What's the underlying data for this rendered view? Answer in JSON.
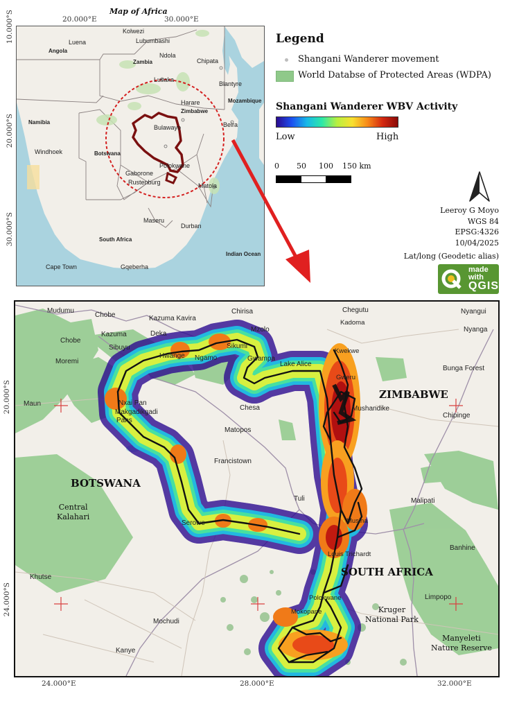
{
  "inset": {
    "title": "Map of Africa",
    "coords_top": [
      "20.000°E",
      "30.000°E"
    ],
    "coords_left": [
      "10.000°S",
      "20.000°S",
      "30.000°S"
    ],
    "labels": {
      "kolwezi": "Kolwezi",
      "lubumbashi": "Lubumbashi",
      "luena": "Luena",
      "angola": "Angola",
      "ndola": "Ndola",
      "zambia": "Zambia",
      "chipata": "Chipata",
      "lusaka": "Lusaka",
      "blantyre": "Blantyre",
      "mozambique": "Mozambique",
      "harare": "Harare",
      "zimbabwe": "Zimbabwe",
      "namibia": "Namibia",
      "bulawayo": "Bulawayo",
      "beira": "Beira",
      "windhoek": "Windhoek",
      "botswana": "Botswana",
      "polokwane": "Polokwane",
      "gaborone": "Gaborone",
      "rustenburg": "Rustenburg",
      "matola": "Matola",
      "maseru": "Maseru",
      "durban": "Durban",
      "south_africa": "South Africa",
      "indian_ocean": "Indian Ocean",
      "cape_town": "Cape Town",
      "gqeberha": "Gqeberha"
    }
  },
  "legend": {
    "title": "Legend",
    "items": [
      {
        "label": "Shangani Wanderer movement",
        "color": "#bdbdbd"
      },
      {
        "label": "World Databse of Protected Areas (WDPA)",
        "color": "#8fc98a"
      }
    ],
    "activity_title": "Shangani Wanderer WBV Activity",
    "low": "Low",
    "high": "High",
    "scale_labels": [
      "0",
      "50",
      "100",
      "150 km"
    ]
  },
  "meta": {
    "author": "Leeroy G Moyo",
    "datum": "WGS 84",
    "epsg": "EPSG:4326",
    "date": "10/04/2025",
    "projection": "Lat/long (Geodetic alias)",
    "badge_line1": "made",
    "badge_line2": "with",
    "badge_line3": "QGIS"
  },
  "main": {
    "coords_bottom": [
      "24.000°E",
      "28.000°E",
      "32.000°E"
    ],
    "coords_left": [
      "20.000°S",
      "24.000°S"
    ],
    "countries": {
      "zimbabwe": "ZIMBABWE",
      "botswana": "BOTSWANA",
      "south_africa": "SOUTH AFRICA"
    },
    "parks": {
      "central_kalahari": "Central\nKalahari",
      "kruger": "Kruger\nNational Park",
      "manyeleti": "Manyeleti\nNature Reserve"
    },
    "places": {
      "mudumu": "Mudumu",
      "chobe1": "Chobe",
      "chirisa": "Chirisa",
      "chegutu": "Chegutu",
      "nyangui": "Nyangui",
      "kazuma_kavira": "Kazuma Kavira",
      "kadoma": "Kadoma",
      "nyanga": "Nyanga",
      "chobe2": "Chobe",
      "kazuma": "Kazuma",
      "deka": "Deka",
      "mzolo": "Mzolo",
      "sibuyu": "Sibuyu",
      "sikumi": "Sikumi",
      "kwekwe": "Kwekwe",
      "hwange": "Hwange",
      "ngamo": "Ngamo",
      "gwampa": "Gwampa",
      "moremi": "Moremi",
      "lake_alice": "Lake Alice",
      "bunga_forest": "Bunga Forest",
      "gweru": "Gweru",
      "maun": "Maun",
      "nxai_pan": "Nxai Pan",
      "makgadikgadi": "Makgadikgadi",
      "pans": "Pans",
      "chesa": "Chesa",
      "mushandike": "Mushandike",
      "chipinge": "Chipinge",
      "matopos": "Matopos",
      "francistown": "Francistown",
      "tuli": "Tuli",
      "malipati": "Malipati",
      "serowe": "Serowe",
      "musina": "Musina",
      "banhine": "Banhine",
      "louis_trichardt": "Louis Trichardt",
      "khutse": "Khutse",
      "polokwane": "Polokwane",
      "limpopo": "Limpopo",
      "mokopane": "Mokopane",
      "mochudi": "Mochudi",
      "kanye": "Kanye"
    }
  }
}
